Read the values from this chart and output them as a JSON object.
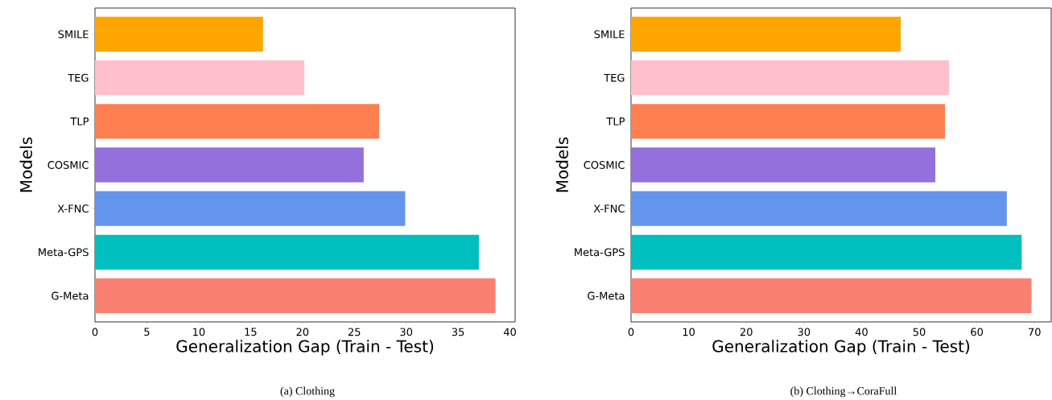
{
  "chart_data": [
    {
      "type": "bar",
      "orientation": "horizontal",
      "xlabel": "Generalization Gap (Train - Test)",
      "ylabel": "Models",
      "categories": [
        "SMILE",
        "TEG",
        "TLP",
        "COSMIC",
        "X-FNC",
        "Meta-GPS",
        "G-Meta"
      ],
      "values": [
        16.2,
        20.2,
        27.4,
        25.9,
        29.9,
        37.0,
        38.6
      ],
      "colors": [
        "#ffa500",
        "#ffc0cb",
        "#ff7f50",
        "#9370db",
        "#6495ed",
        "#00bfbf",
        "#fa8072"
      ],
      "xlim": [
        0,
        40.5
      ],
      "xticks": [
        0,
        5,
        10,
        15,
        20,
        25,
        30,
        35,
        40
      ],
      "annotations": [
        "(a)  Clothing"
      ]
    },
    {
      "type": "bar",
      "orientation": "horizontal",
      "xlabel": "Generalization Gap (Train - Test)",
      "ylabel": "Models",
      "categories": [
        "SMILE",
        "TEG",
        "TLP",
        "COSMIC",
        "X-FNC",
        "Meta-GPS",
        "G-Meta"
      ],
      "values": [
        46.8,
        55.2,
        54.5,
        52.8,
        65.2,
        67.8,
        69.5
      ],
      "colors": [
        "#ffa500",
        "#ffc0cb",
        "#ff7f50",
        "#9370db",
        "#6495ed",
        "#00bfbf",
        "#fa8072"
      ],
      "xlim": [
        0,
        72.9
      ],
      "xticks": [
        0,
        10,
        20,
        30,
        40,
        50,
        60,
        70
      ],
      "annotations": [
        "(b)  Clothing→CoraFull"
      ]
    }
  ]
}
